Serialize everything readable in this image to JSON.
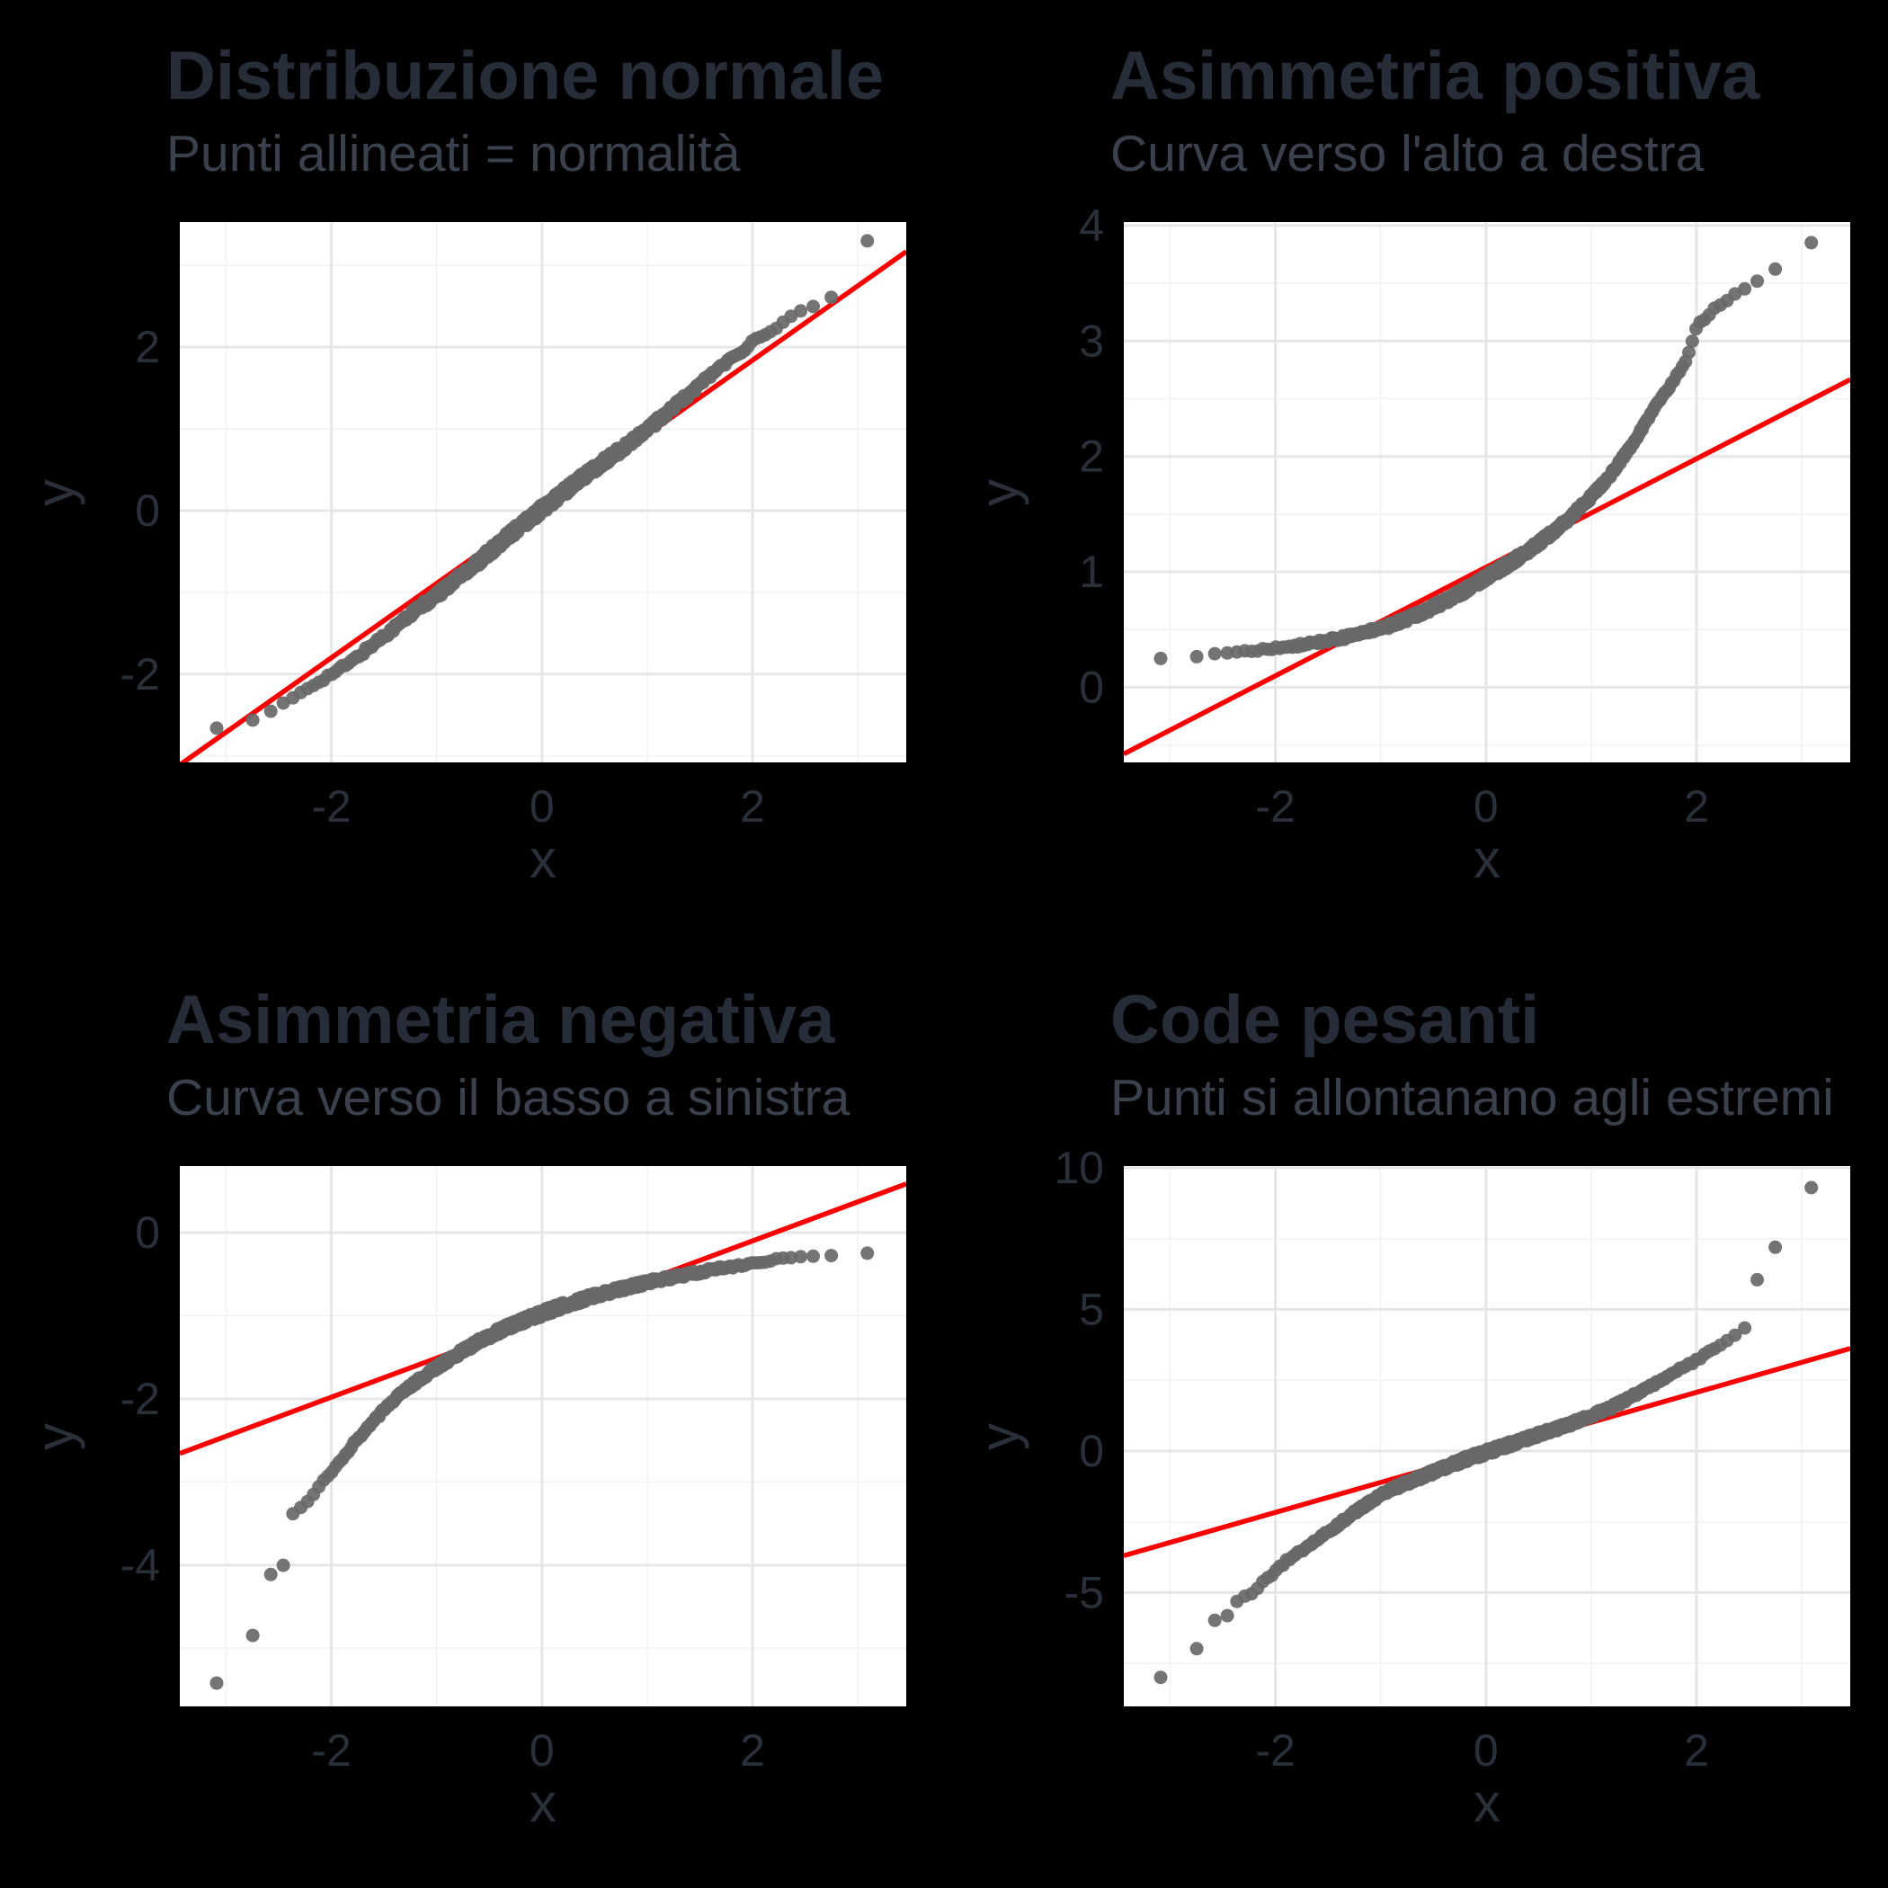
{
  "figure": {
    "background": "#000000",
    "panel_background": "#ffffff",
    "grid_major_color": "#e6e6e6",
    "grid_minor_color": "#f3f3f3",
    "point_color": "#686868",
    "point_opacity": 0.92,
    "reference_line_color": "#fa0000",
    "title_color": "#262d38",
    "subtitle_color": "#3a414d",
    "axis_text_color": "#2a303a"
  },
  "chart_data": {
    "type": "scatter",
    "kind": "qq-plot-2x2-grid",
    "grid": "on",
    "legend": "none",
    "panels": [
      {
        "id": "normale",
        "title": "Distribuzione normale",
        "subtitle": "Punti allineati = normalità",
        "xlabel": "x",
        "ylabel": "y",
        "x_ticks": [
          -2,
          0,
          2
        ],
        "y_ticks": [
          2,
          0,
          -2
        ],
        "x_minor_ticks": [
          -3,
          -1,
          1,
          3
        ],
        "y_minor_ticks": [
          3,
          1,
          -1,
          -3
        ],
        "xlim": [
          -3.44,
          3.46
        ],
        "ylim": [
          -3.08,
          3.53
        ],
        "ref_line": {
          "slope": 0.91,
          "intercept": 0.02
        },
        "n_points": 500,
        "jitter": 0.06,
        "curve_points": [
          [
            -3.09,
            -2.66
          ],
          [
            -2.8,
            -2.6
          ],
          [
            -2.6,
            -2.48
          ],
          [
            -2.4,
            -2.32
          ],
          [
            -2.2,
            -2.15
          ],
          [
            -2.0,
            -2.0
          ],
          [
            -1.8,
            -1.84
          ],
          [
            -1.6,
            -1.63
          ],
          [
            -1.4,
            -1.43
          ],
          [
            -1.2,
            -1.22
          ],
          [
            -1.0,
            -1.04
          ],
          [
            -0.8,
            -0.82
          ],
          [
            -0.6,
            -0.62
          ],
          [
            -0.4,
            -0.4
          ],
          [
            -0.2,
            -0.18
          ],
          [
            0,
            0.02
          ],
          [
            0.2,
            0.22
          ],
          [
            0.4,
            0.42
          ],
          [
            0.6,
            0.61
          ],
          [
            0.8,
            0.79
          ],
          [
            1.0,
            0.99
          ],
          [
            1.2,
            1.21
          ],
          [
            1.4,
            1.43
          ],
          [
            1.6,
            1.66
          ],
          [
            1.8,
            1.86
          ],
          [
            2.0,
            2.06
          ],
          [
            2.2,
            2.22
          ],
          [
            2.4,
            2.4
          ],
          [
            2.6,
            2.52
          ],
          [
            2.8,
            2.64
          ],
          [
            3.09,
            3.3
          ]
        ]
      },
      {
        "id": "asimmetria-positiva",
        "title": "Asimmetria positiva",
        "subtitle": "Curva verso l'alto a destra",
        "xlabel": "x",
        "ylabel": "y",
        "x_ticks": [
          -2,
          0,
          2
        ],
        "y_ticks": [
          4,
          3,
          2,
          1,
          0
        ],
        "x_minor_ticks": [
          -3,
          -1,
          1,
          3
        ],
        "y_minor_ticks": [
          3.5,
          2.5,
          1.5,
          0.5,
          -0.5
        ],
        "xlim": [
          -3.44,
          3.46
        ],
        "ylim": [
          -0.65,
          4.03
        ],
        "ref_line": {
          "slope": 0.47,
          "intercept": 1.04
        },
        "n_points": 500,
        "jitter": 0.03,
        "curve_points": [
          [
            -3.09,
            0.25
          ],
          [
            -2.75,
            0.27
          ],
          [
            -2.58,
            0.29
          ],
          [
            -2.4,
            0.3
          ],
          [
            -2.2,
            0.32
          ],
          [
            -2.0,
            0.34
          ],
          [
            -1.8,
            0.36
          ],
          [
            -1.6,
            0.39
          ],
          [
            -1.4,
            0.42
          ],
          [
            -1.2,
            0.46
          ],
          [
            -1.0,
            0.51
          ],
          [
            -0.8,
            0.57
          ],
          [
            -0.6,
            0.65
          ],
          [
            -0.4,
            0.74
          ],
          [
            -0.2,
            0.84
          ],
          [
            0,
            0.95
          ],
          [
            0.2,
            1.06
          ],
          [
            0.4,
            1.18
          ],
          [
            0.6,
            1.32
          ],
          [
            0.8,
            1.47
          ],
          [
            1.0,
            1.65
          ],
          [
            1.2,
            1.86
          ],
          [
            1.4,
            2.12
          ],
          [
            1.6,
            2.42
          ],
          [
            1.8,
            2.68
          ],
          [
            1.9,
            2.82
          ],
          [
            2.0,
            3.12
          ],
          [
            2.1,
            3.22
          ],
          [
            2.2,
            3.3
          ],
          [
            2.4,
            3.42
          ],
          [
            2.58,
            3.52
          ],
          [
            2.75,
            3.62
          ],
          [
            3.09,
            3.85
          ]
        ]
      },
      {
        "id": "asimmetria-negativa",
        "title": "Asimmetria negativa",
        "subtitle": "Curva verso il basso a sinistra",
        "xlabel": "x",
        "ylabel": "y",
        "x_ticks": [
          -2,
          0,
          2
        ],
        "y_ticks": [
          0,
          -2,
          -4
        ],
        "x_minor_ticks": [
          -3,
          -1,
          1,
          3
        ],
        "y_minor_ticks": [
          -1,
          -3,
          -5
        ],
        "xlim": [
          -3.44,
          3.46
        ],
        "ylim": [
          -5.7,
          0.8
        ],
        "ref_line": {
          "slope": 0.47,
          "intercept": -1.04
        },
        "n_points": 500,
        "jitter": 0.04,
        "curve_points": [
          [
            -3.09,
            -5.42
          ],
          [
            -2.75,
            -4.85
          ],
          [
            -2.58,
            -4.12
          ],
          [
            -2.46,
            -4.02
          ],
          [
            -2.37,
            -3.38
          ],
          [
            -2.29,
            -3.3
          ],
          [
            -2.2,
            -3.22
          ],
          [
            -2.12,
            -3.05
          ],
          [
            -2.0,
            -2.9
          ],
          [
            -1.9,
            -2.72
          ],
          [
            -1.8,
            -2.56
          ],
          [
            -1.7,
            -2.42
          ],
          [
            -1.6,
            -2.27
          ],
          [
            -1.5,
            -2.13
          ],
          [
            -1.4,
            -2.01
          ],
          [
            -1.3,
            -1.9
          ],
          [
            -1.2,
            -1.8
          ],
          [
            -1.1,
            -1.71
          ],
          [
            -1.0,
            -1.62
          ],
          [
            -0.8,
            -1.46
          ],
          [
            -0.6,
            -1.31
          ],
          [
            -0.4,
            -1.18
          ],
          [
            -0.2,
            -1.07
          ],
          [
            0,
            -0.97
          ],
          [
            0.2,
            -0.88
          ],
          [
            0.4,
            -0.8
          ],
          [
            0.6,
            -0.73
          ],
          [
            0.8,
            -0.66
          ],
          [
            1.0,
            -0.6
          ],
          [
            1.2,
            -0.55
          ],
          [
            1.4,
            -0.5
          ],
          [
            1.6,
            -0.45
          ],
          [
            1.8,
            -0.41
          ],
          [
            2.0,
            -0.37
          ],
          [
            2.2,
            -0.33
          ],
          [
            2.4,
            -0.3
          ],
          [
            2.58,
            -0.29
          ],
          [
            2.75,
            -0.28
          ],
          [
            3.09,
            -0.25
          ]
        ]
      },
      {
        "id": "code-pesanti",
        "title": "Code pesanti",
        "subtitle": "Punti si allontanano agli estremi",
        "xlabel": "x",
        "ylabel": "y",
        "x_ticks": [
          -2,
          0,
          2
        ],
        "y_ticks": [
          10,
          5,
          0,
          -5
        ],
        "x_minor_ticks": [
          -3,
          -1,
          1,
          3
        ],
        "y_minor_ticks": [
          7.5,
          2.5,
          -2.5,
          -7.5
        ],
        "xlim": [
          -3.44,
          3.46
        ],
        "ylim": [
          -9.02,
          10.06
        ],
        "ref_line": {
          "slope": 1.06,
          "intercept": -0.05
        },
        "n_points": 500,
        "jitter": 0.1,
        "curve_points": [
          [
            -3.09,
            -8.0
          ],
          [
            -2.75,
            -7.0
          ],
          [
            -2.58,
            -6.0
          ],
          [
            -2.46,
            -5.85
          ],
          [
            -2.37,
            -5.3
          ],
          [
            -2.29,
            -5.15
          ],
          [
            -2.2,
            -5.0
          ],
          [
            -2.12,
            -4.6
          ],
          [
            -2.05,
            -4.45
          ],
          [
            -2.0,
            -4.25
          ],
          [
            -1.9,
            -3.9
          ],
          [
            -1.8,
            -3.6
          ],
          [
            -1.7,
            -3.4
          ],
          [
            -1.6,
            -3.1
          ],
          [
            -1.5,
            -2.85
          ],
          [
            -1.4,
            -2.6
          ],
          [
            -1.3,
            -2.3
          ],
          [
            -1.2,
            -2.05
          ],
          [
            -1.1,
            -1.8
          ],
          [
            -1.0,
            -1.55
          ],
          [
            -0.8,
            -1.2
          ],
          [
            -0.6,
            -0.9
          ],
          [
            -0.4,
            -0.6
          ],
          [
            -0.2,
            -0.3
          ],
          [
            0,
            -0.05
          ],
          [
            0.2,
            0.2
          ],
          [
            0.4,
            0.45
          ],
          [
            0.6,
            0.7
          ],
          [
            0.8,
            0.95
          ],
          [
            1.0,
            1.25
          ],
          [
            1.2,
            1.55
          ],
          [
            1.4,
            1.95
          ],
          [
            1.6,
            2.35
          ],
          [
            1.8,
            2.8
          ],
          [
            2.0,
            3.2
          ],
          [
            2.2,
            3.7
          ],
          [
            2.37,
            4.1
          ],
          [
            2.46,
            4.35
          ],
          [
            2.58,
            6.1
          ],
          [
            2.75,
            7.2
          ],
          [
            3.09,
            9.3
          ]
        ]
      }
    ]
  }
}
